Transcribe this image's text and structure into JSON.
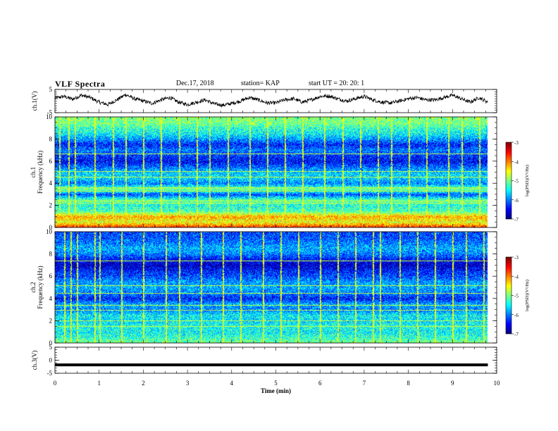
{
  "header": {
    "title": "VLF Spectra",
    "date": "Dec.17, 2018",
    "station": "station= KAP",
    "start": "start  UT  =   20: 20: 1"
  },
  "chart_data": [
    {
      "type": "line",
      "panel": "ch1-waveform",
      "ylabel": "ch.1(V)",
      "ylim": [
        -5,
        5
      ],
      "yticks": [
        5,
        -5
      ],
      "xlim": [
        0,
        10
      ],
      "series": [
        {
          "color": "#000000",
          "x": [
            0.0,
            0.2,
            0.4,
            0.6,
            0.8,
            1.0,
            1.2,
            1.4,
            1.6,
            1.8,
            2.0,
            2.2,
            2.4,
            2.6,
            2.8,
            3.0,
            3.2,
            3.4,
            3.6,
            3.8,
            4.0,
            4.2,
            4.4,
            4.6,
            4.8,
            5.0,
            5.2,
            5.4,
            5.6,
            5.8,
            6.0,
            6.2,
            6.4,
            6.6,
            6.8,
            7.0,
            7.2,
            7.4,
            7.6,
            7.8,
            8.0,
            8.2,
            8.4,
            8.6,
            8.8,
            9.0,
            9.2,
            9.4,
            9.6,
            9.8
          ],
          "values": [
            1.2,
            2.0,
            0.8,
            2.5,
            1.5,
            -0.5,
            -1.5,
            0.5,
            2.8,
            1.0,
            0.0,
            -1.0,
            0.5,
            1.5,
            -0.5,
            -1.5,
            -0.5,
            0.5,
            -1.2,
            -1.8,
            -1.0,
            0.0,
            1.5,
            0.5,
            -0.8,
            -0.8,
            0.5,
            1.0,
            -0.5,
            0.5,
            2.0,
            2.2,
            1.0,
            0.0,
            1.0,
            2.0,
            0.5,
            -0.5,
            -0.8,
            0.0,
            1.0,
            1.5,
            0.5,
            0.5,
            1.5,
            2.5,
            1.0,
            -0.5,
            1.5,
            -0.5
          ]
        }
      ]
    },
    {
      "type": "heatmap",
      "panel": "ch1-spectrogram",
      "ylabel": "ch.1",
      "ylabel2": "Frequency  (kHz)",
      "ylim": [
        0,
        10
      ],
      "yticks": [
        0,
        2,
        4,
        6,
        8,
        10
      ],
      "xlim": [
        0,
        10
      ],
      "colorbar": {
        "title": "log(PSD)(V²/Hz)",
        "ticks": [
          -3,
          -4,
          -5,
          -6,
          -7
        ],
        "range": [
          -7,
          -3
        ]
      },
      "background_levels": [
        {
          "f": 0.0,
          "v": -3.6
        },
        {
          "f": 0.5,
          "v": -4.6
        },
        {
          "f": 1.0,
          "v": -4.2
        },
        {
          "f": 1.5,
          "v": -5.2
        },
        {
          "f": 2.0,
          "v": -5.4
        },
        {
          "f": 2.5,
          "v": -5.1
        },
        {
          "f": 3.0,
          "v": -6.2
        },
        {
          "f": 3.5,
          "v": -5.0
        },
        {
          "f": 4.0,
          "v": -6.0
        },
        {
          "f": 4.5,
          "v": -5.6
        },
        {
          "f": 5.0,
          "v": -5.7
        },
        {
          "f": 5.5,
          "v": -6.1
        },
        {
          "f": 6.0,
          "v": -6.5
        },
        {
          "f": 6.5,
          "v": -6.3
        },
        {
          "f": 7.0,
          "v": -6.0
        },
        {
          "f": 7.5,
          "v": -6.4
        },
        {
          "f": 8.0,
          "v": -5.9
        },
        {
          "f": 8.5,
          "v": -5.5
        },
        {
          "f": 9.0,
          "v": -5.3
        },
        {
          "f": 9.5,
          "v": -5.0
        },
        {
          "f": 10.0,
          "v": -5.0
        }
      ],
      "tone_lines_khz": [
        0.2,
        0.9,
        1.0,
        2.2,
        2.4,
        3.3,
        3.6,
        4.6,
        5.1,
        6.7
      ],
      "bursts_min": [
        0.1,
        0.3,
        0.45,
        0.9,
        1.3,
        1.6,
        2.0,
        2.4,
        2.8,
        3.2,
        3.5,
        3.9,
        4.4,
        4.8,
        5.2,
        5.6,
        6.1,
        6.5,
        6.9,
        7.3,
        7.6,
        8.0,
        8.4,
        8.9,
        9.2,
        9.6
      ]
    },
    {
      "type": "heatmap",
      "panel": "ch2-spectrogram",
      "ylabel": "ch.2",
      "ylabel2": "Frequency  (kHz)",
      "ylim": [
        0,
        10
      ],
      "yticks": [
        0,
        2,
        4,
        6,
        8,
        10
      ],
      "xlim": [
        0,
        10
      ],
      "colorbar": {
        "title": "log(PSD)(V²/Hz)",
        "ticks": [
          -3,
          -4,
          -5,
          -6,
          -7
        ],
        "range": [
          -7,
          -3
        ]
      },
      "background_levels": [
        {
          "f": 0.0,
          "v": -5.0
        },
        {
          "f": 0.5,
          "v": -5.3
        },
        {
          "f": 1.0,
          "v": -5.5
        },
        {
          "f": 1.5,
          "v": -5.4
        },
        {
          "f": 2.0,
          "v": -5.6
        },
        {
          "f": 2.5,
          "v": -5.5
        },
        {
          "f": 3.0,
          "v": -6.0
        },
        {
          "f": 3.5,
          "v": -5.8
        },
        {
          "f": 4.0,
          "v": -6.4
        },
        {
          "f": 4.5,
          "v": -6.0
        },
        {
          "f": 5.0,
          "v": -5.8
        },
        {
          "f": 5.5,
          "v": -5.9
        },
        {
          "f": 6.0,
          "v": -6.2
        },
        {
          "f": 6.5,
          "v": -6.4
        },
        {
          "f": 7.0,
          "v": -6.7
        },
        {
          "f": 7.5,
          "v": -6.5
        },
        {
          "f": 8.0,
          "v": -6.0
        },
        {
          "f": 8.5,
          "v": -5.8
        },
        {
          "f": 9.0,
          "v": -6.0
        },
        {
          "f": 9.5,
          "v": -6.2
        },
        {
          "f": 10.0,
          "v": -6.2
        }
      ],
      "tone_lines_khz": [
        1.5,
        2.0,
        3.0,
        3.4,
        4.5,
        5.2,
        7.4
      ],
      "bursts_min": [
        0.2,
        0.35,
        0.5,
        0.9,
        1.0,
        1.5,
        2.0,
        2.5,
        2.8,
        3.3,
        3.8,
        4.2,
        4.7,
        5.1,
        5.5,
        6.0,
        6.4,
        6.8,
        7.2,
        7.35,
        7.8,
        8.2,
        8.6,
        9.0,
        9.3,
        9.7
      ]
    },
    {
      "type": "line",
      "panel": "ch3-waveform",
      "ylabel": "ch.3(V)",
      "xlabel": "Time  (min)",
      "ylim": [
        -5,
        5
      ],
      "yticks": [
        5,
        0,
        -5
      ],
      "xlim": [
        0,
        10
      ],
      "xticks": [
        0,
        1,
        2,
        3,
        4,
        5,
        6,
        7,
        8,
        9,
        10
      ],
      "series": [
        {
          "color": "#000000",
          "x": [
            0,
            9.8
          ],
          "values": [
            -1.8,
            -1.8
          ]
        }
      ]
    }
  ]
}
